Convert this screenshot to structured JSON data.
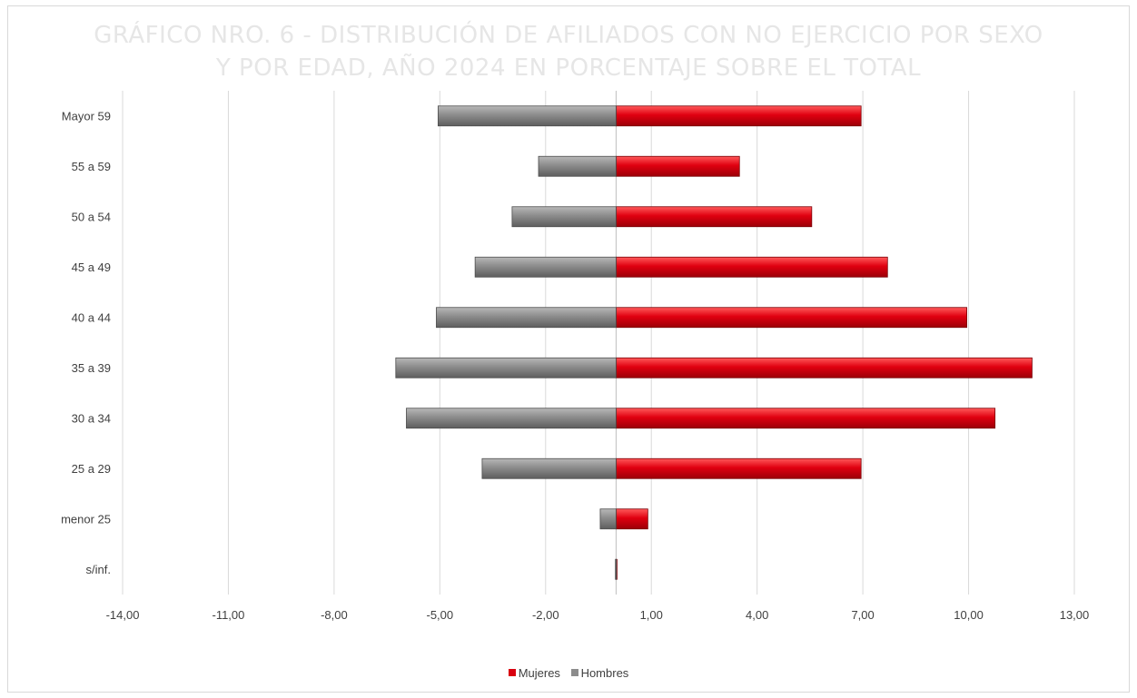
{
  "chart_data": {
    "type": "bar",
    "orientation": "horizontal",
    "title_lines": [
      "GRÁFICO NRO. 6 - DISTRIBUCIÓN DE AFILIADOS CON NO EJERCICIO POR SEXO",
      "Y POR EDAD, AÑO 2024 EN PORCENTAJE SOBRE EL TOTAL"
    ],
    "categories": [
      "Mayor 59",
      "55 a 59",
      "50 a 54",
      "45 a 49",
      "40 a 44",
      "35 a 39",
      "30 a 34",
      "25 a 29",
      "menor 25",
      "s/inf."
    ],
    "series": [
      {
        "name": "Mujeres",
        "color": "#d9000f",
        "values": [
          6.95,
          3.5,
          5.55,
          7.7,
          9.95,
          11.8,
          10.75,
          6.95,
          0.9,
          0.0
        ]
      },
      {
        "name": "Hombres",
        "color": "#8c8c8c",
        "values": [
          -5.05,
          -2.2,
          -2.95,
          -4.0,
          -5.1,
          -6.25,
          -5.95,
          -3.8,
          -0.45,
          -0.02
        ]
      }
    ],
    "xticks": [
      "-14,00",
      "-11,00",
      "-8,00",
      "-5,00",
      "-2,00",
      "1,00",
      "4,00",
      "7,00",
      "10,00",
      "13,00"
    ],
    "xtick_values": [
      -14,
      -11,
      -8,
      -5,
      -2,
      1,
      4,
      7,
      10,
      13
    ],
    "xlim": [
      -14,
      13
    ],
    "grid": true,
    "legend_position": "bottom"
  }
}
